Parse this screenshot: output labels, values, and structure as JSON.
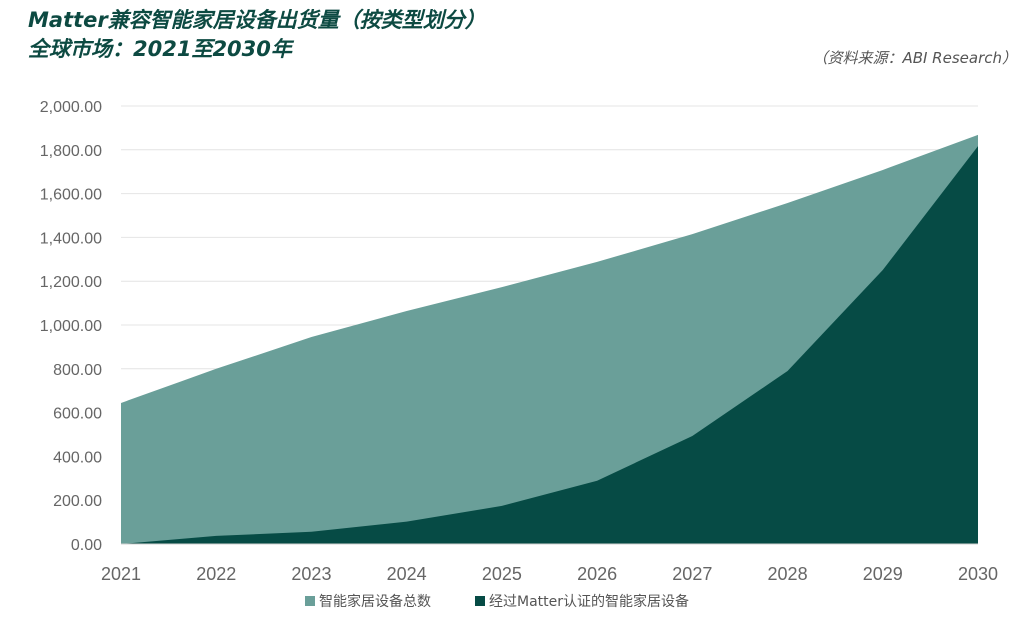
{
  "chart_data": {
    "type": "area",
    "title": "Matter兼容智能家居设备出货量（按类型划分）",
    "subtitle": "全球市场：2021至2030年",
    "source": "（资料来源：ABI Research）",
    "categories": [
      "2021",
      "2022",
      "2023",
      "2024",
      "2025",
      "2026",
      "2027",
      "2028",
      "2029",
      "2030"
    ],
    "ylim": [
      0,
      2000
    ],
    "yticks": [
      "0.00",
      "200.00",
      "400.00",
      "600.00",
      "800.00",
      "1,000.00",
      "1,200.00",
      "1,400.00",
      "1,600.00",
      "1,800.00",
      "2,000.00"
    ],
    "grid": true,
    "legend_position": "bottom",
    "series": [
      {
        "name": "智能家居设备总数",
        "color": "#6a9f99",
        "values": [
          644,
          800,
          945,
          1064,
          1173,
          1288,
          1415,
          1557,
          1708,
          1868
        ]
      },
      {
        "name": "经过Matter认证的智能家居设备",
        "color": "#064b45",
        "values": [
          0,
          37,
          56,
          102,
          174,
          289,
          493,
          790,
          1251,
          1817
        ]
      }
    ]
  }
}
